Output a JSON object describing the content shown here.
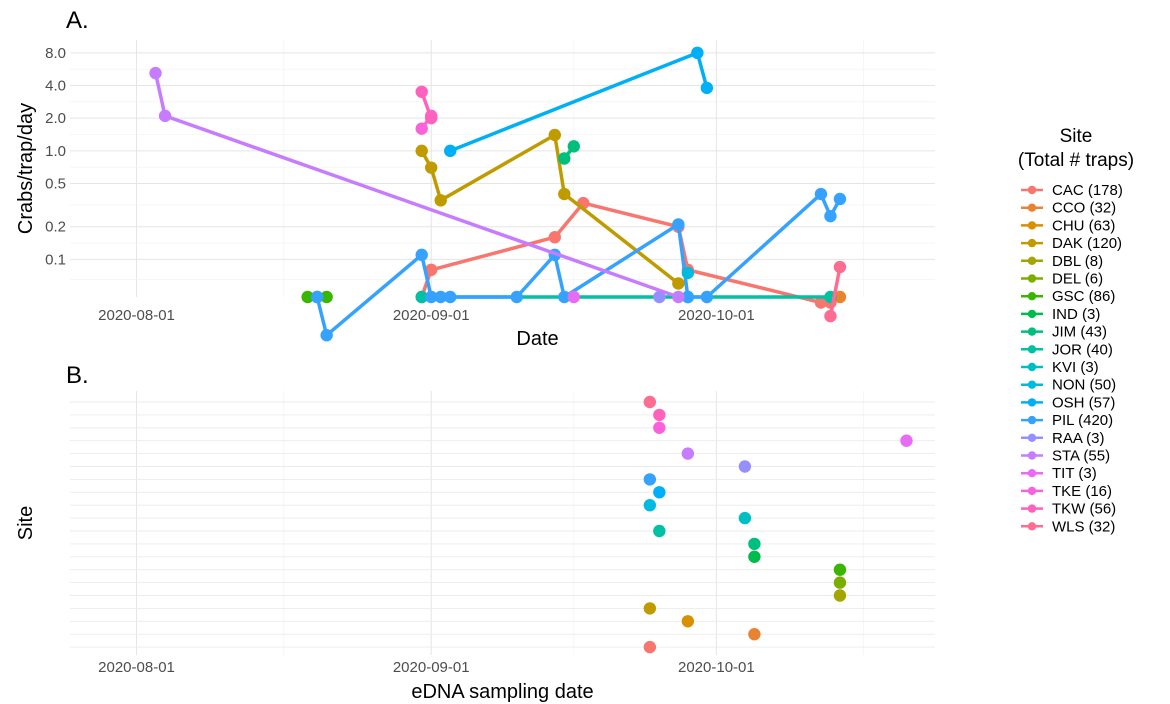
{
  "panels": {
    "a_label": "A.",
    "b_label": "B."
  },
  "legend": {
    "title_line1": "Site",
    "title_line2": "(Total # traps)",
    "items": [
      {
        "code": "CAC",
        "label": "CAC (178)",
        "color": "#F8766D"
      },
      {
        "code": "CCO",
        "label": "CCO (32)",
        "color": "#EA8331"
      },
      {
        "code": "CHU",
        "label": "CHU (63)",
        "color": "#D89000"
      },
      {
        "code": "DAK",
        "label": "DAK (120)",
        "color": "#C09B00"
      },
      {
        "code": "DBL",
        "label": "DBL (8)",
        "color": "#A3A500"
      },
      {
        "code": "DEL",
        "label": "DEL (6)",
        "color": "#7CAE00"
      },
      {
        "code": "GSC",
        "label": "GSC (86)",
        "color": "#39B600"
      },
      {
        "code": "IND",
        "label": "IND (3)",
        "color": "#00BB4E"
      },
      {
        "code": "JIM",
        "label": "JIM (43)",
        "color": "#00BF7D"
      },
      {
        "code": "JOR",
        "label": "JOR (40)",
        "color": "#00C1A3"
      },
      {
        "code": "KVI",
        "label": "KVI (3)",
        "color": "#00BFC4"
      },
      {
        "code": "NON",
        "label": "NON (50)",
        "color": "#00BAE0"
      },
      {
        "code": "OSH",
        "label": "OSH (57)",
        "color": "#00B0F6"
      },
      {
        "code": "PIL",
        "label": "PIL (420)",
        "color": "#35A2FF"
      },
      {
        "code": "RAA",
        "label": "RAA (3)",
        "color": "#9590FF"
      },
      {
        "code": "STA",
        "label": "STA (55)",
        "color": "#C77CFF"
      },
      {
        "code": "TIT",
        "label": "TIT (3)",
        "color": "#E76BF3"
      },
      {
        "code": "TKE",
        "label": "TKE (16)",
        "color": "#FA62DB"
      },
      {
        "code": "TKW",
        "label": "TKW (56)",
        "color": "#FF62BC"
      },
      {
        "code": "WLS",
        "label": "WLS (32)",
        "color": "#FF6C91"
      }
    ]
  },
  "chart_data": [
    {
      "panel": "A.",
      "type": "line",
      "xlabel": "Date",
      "ylabel": "Crabs/trap/day",
      "y_scale": "log (zero values drawn at bottom edge)",
      "xlim": [
        "2020-07-25",
        "2020-10-24"
      ],
      "x_ticks": [
        "2020-08-01",
        "2020-09-01",
        "2020-10-01"
      ],
      "y_ticks": [
        0.1,
        0.2,
        0.5,
        1.0,
        2.0,
        4.0,
        8.0
      ],
      "y_tick_labels": [
        "0.1",
        "0.2",
        "0.5",
        "1.0",
        "2.0",
        "4.0",
        "8.0"
      ],
      "grid": true,
      "series": [
        {
          "name": "CAC",
          "x": [
            "2020-08-31",
            "2020-09-01",
            "2020-09-14",
            "2020-09-17",
            "2020-09-27",
            "2020-09-28",
            "2020-10-12",
            "2020-10-13"
          ],
          "y": [
            0,
            0.08,
            0.16,
            0.33,
            0.2,
            0.08,
            0.04,
            0.04
          ]
        },
        {
          "name": "CCO",
          "x": [
            "2020-10-14"
          ],
          "y": [
            0
          ]
        },
        {
          "name": "DAK",
          "x": [
            "2020-08-31",
            "2020-09-01",
            "2020-09-02",
            "2020-09-14",
            "2020-09-15",
            "2020-09-27"
          ],
          "y": [
            1.0,
            0.7,
            0.35,
            1.4,
            0.4,
            0.06
          ]
        },
        {
          "name": "GSC",
          "x": [
            "2020-08-19",
            "2020-08-20",
            "2020-08-21"
          ],
          "y": [
            0,
            0,
            0
          ]
        },
        {
          "name": "JIM",
          "x": [
            "2020-09-15",
            "2020-09-16"
          ],
          "y": [
            0.85,
            1.1
          ]
        },
        {
          "name": "JOR",
          "x": [
            "2020-08-31",
            "2020-09-28",
            "2020-10-13"
          ],
          "y": [
            0,
            0,
            0
          ]
        },
        {
          "name": "OSH",
          "x": [
            "2020-09-03",
            "2020-09-29",
            "2020-09-30"
          ],
          "y": [
            1.0,
            8.0,
            3.8
          ]
        },
        {
          "name": "PIL",
          "x": [
            "2020-08-20",
            "2020-08-21",
            "2020-08-31",
            "2020-09-01",
            "2020-09-02",
            "2020-09-03",
            "2020-09-10",
            "2020-09-14",
            "2020-09-15",
            "2020-09-27",
            "2020-09-28",
            "2020-09-30",
            "2020-10-12",
            "2020-10-13",
            "2020-10-14"
          ],
          "y": [
            0,
            0.02,
            0.11,
            0,
            0,
            0,
            0,
            0.11,
            0,
            0.21,
            0,
            0,
            0.4,
            0.25,
            0.36
          ]
        },
        {
          "name": "NON",
          "x": [
            "2020-09-28"
          ],
          "y": [
            0.075
          ]
        },
        {
          "name": "RAA",
          "x": [
            "2020-09-25"
          ],
          "y": [
            0
          ]
        },
        {
          "name": "STA",
          "x": [
            "2020-08-03",
            "2020-08-04",
            "2020-09-27"
          ],
          "y": [
            5.2,
            2.1,
            0
          ]
        },
        {
          "name": "TIT",
          "x": [
            "2020-09-16"
          ],
          "y": [
            0
          ]
        },
        {
          "name": "TKE",
          "x": [
            "2020-08-31",
            "2020-09-01"
          ],
          "y": [
            1.6,
            2.1
          ]
        },
        {
          "name": "TKW",
          "x": [
            "2020-08-31",
            "2020-09-01"
          ],
          "y": [
            3.5,
            2.0
          ]
        },
        {
          "name": "WLS",
          "x": [
            "2020-10-13",
            "2020-10-14"
          ],
          "y": [
            0.03,
            0.085
          ]
        }
      ]
    },
    {
      "panel": "B.",
      "type": "scatter",
      "xlabel": "eDNA sampling date",
      "ylabel": "Site",
      "xlim": [
        "2020-07-25",
        "2020-10-24"
      ],
      "x_ticks": [
        "2020-08-01",
        "2020-09-01",
        "2020-10-01"
      ],
      "y_categories": [
        "CAC",
        "CCO",
        "CHU",
        "DAK",
        "DBL",
        "DEL",
        "GSC",
        "IND",
        "JIM",
        "JOR",
        "KVI",
        "NON",
        "OSH",
        "PIL",
        "RAA",
        "STA",
        "TIT",
        "TKE",
        "TKW",
        "WLS"
      ],
      "grid": true,
      "points": [
        {
          "site": "CAC",
          "date": "2020-09-24"
        },
        {
          "site": "CCO",
          "date": "2020-10-05"
        },
        {
          "site": "CHU",
          "date": "2020-09-28"
        },
        {
          "site": "DAK",
          "date": "2020-09-24"
        },
        {
          "site": "DBL",
          "date": "2020-10-14"
        },
        {
          "site": "DEL",
          "date": "2020-10-14"
        },
        {
          "site": "GSC",
          "date": "2020-10-14"
        },
        {
          "site": "IND",
          "date": "2020-10-05"
        },
        {
          "site": "JIM",
          "date": "2020-10-05"
        },
        {
          "site": "JOR",
          "date": "2020-09-25"
        },
        {
          "site": "KVI",
          "date": "2020-10-04"
        },
        {
          "site": "NON",
          "date": "2020-09-24"
        },
        {
          "site": "OSH",
          "date": "2020-09-25"
        },
        {
          "site": "PIL",
          "date": "2020-09-24"
        },
        {
          "site": "RAA",
          "date": "2020-10-04"
        },
        {
          "site": "STA",
          "date": "2020-09-28"
        },
        {
          "site": "TIT",
          "date": "2020-10-21"
        },
        {
          "site": "TKE",
          "date": "2020-09-25"
        },
        {
          "site": "TKW",
          "date": "2020-09-25"
        },
        {
          "site": "WLS",
          "date": "2020-09-24"
        }
      ]
    }
  ]
}
